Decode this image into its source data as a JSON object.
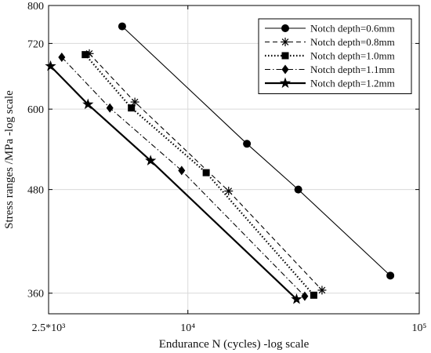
{
  "chart_data": {
    "type": "line",
    "title": "",
    "xlabel": "Endurance N (cycles) -log scale",
    "ylabel": "Stress ranges /MPa -log scale",
    "xscale": "log",
    "yscale": "log",
    "xlim": [
      2500,
      100000
    ],
    "ylim": [
      340,
      800
    ],
    "xticks": [
      2500,
      10000,
      100000
    ],
    "xtick_labels": [
      "2.5*10³",
      "10⁴",
      "10⁵"
    ],
    "yticks": [
      360,
      480,
      600,
      720,
      800
    ],
    "ytick_labels": [
      "360",
      "480",
      "600",
      "720",
      "800"
    ],
    "grid": true,
    "legend_position": "top-right",
    "series": [
      {
        "name": "Notch depth=0.6mm",
        "marker": "circle",
        "line": "solid-thin",
        "points": [
          [
            5200,
            755
          ],
          [
            18000,
            545
          ],
          [
            30000,
            480
          ],
          [
            75000,
            378
          ]
        ]
      },
      {
        "name": "Notch depth=0.8mm",
        "marker": "asterisk",
        "line": "dashed",
        "points": [
          [
            3750,
            700
          ],
          [
            5900,
            612
          ],
          [
            15000,
            478
          ],
          [
            38000,
            363
          ]
        ]
      },
      {
        "name": "Notch depth=1.0mm",
        "marker": "square",
        "line": "dotted",
        "points": [
          [
            3600,
            698
          ],
          [
            5700,
            602
          ],
          [
            12000,
            503
          ],
          [
            35000,
            358
          ]
        ]
      },
      {
        "name": "Notch depth=1.1mm",
        "marker": "diamond",
        "line": "dash-dot",
        "points": [
          [
            2850,
            693
          ],
          [
            4600,
            602
          ],
          [
            9400,
            506
          ],
          [
            32000,
            357
          ]
        ]
      },
      {
        "name": "Notch depth=1.2mm",
        "marker": "star",
        "line": "solid-thick",
        "points": [
          [
            2550,
            676
          ],
          [
            3700,
            608
          ],
          [
            6900,
            520
          ],
          [
            29500,
            354
          ]
        ]
      }
    ]
  }
}
